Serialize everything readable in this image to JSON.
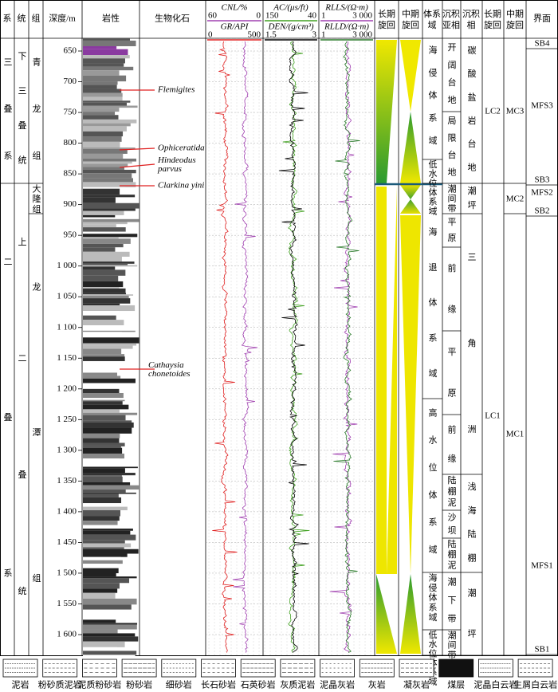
{
  "header": {
    "system": "系",
    "series": "统",
    "formation": "组",
    "depth": "深度/m",
    "lithology": "岩性",
    "fossils": "生物化石",
    "long_cycle": "长期旋回",
    "mid_cycle": "中期旋回",
    "systems_tract": "体系域",
    "subfacies": "沉积亚相",
    "facies": "沉积相",
    "long_cycle2": "长期旋回",
    "mid_cycle2": "中期旋回",
    "surface": "界面"
  },
  "logs": [
    {
      "name": "CNL/%",
      "left": 60,
      "right": 0,
      "color": "#a040b0"
    },
    {
      "name": "GR/API",
      "left": 0,
      "right": 500,
      "color": "#e02020"
    },
    {
      "name": "AC/(μs/ft)",
      "left": 150,
      "right": 40,
      "color": "#40a020"
    },
    {
      "name": "DEN/(g/cm³)",
      "left": 1.5,
      "right": 3,
      "color": "#000000"
    },
    {
      "name": "RLLS/(Ω·m)",
      "left": 1,
      "right": {
        "value": 3000,
        "label": "3 000"
      },
      "color": "#a040b0"
    },
    {
      "name": "RLLD/(Ω·m)",
      "left": 1,
      "right": {
        "value": 3000,
        "label": "3 000"
      },
      "color": "#2a7a2a"
    }
  ],
  "depth_ticks": [
    650,
    700,
    750,
    800,
    850,
    900,
    950,
    {
      "value": 1000,
      "label": "1 000"
    },
    {
      "value": 1050,
      "label": "1 050"
    },
    {
      "value": 1100,
      "label": "1 100"
    },
    {
      "value": 1150,
      "label": "1 150"
    },
    {
      "value": 1200,
      "label": "1 200"
    },
    {
      "value": 1250,
      "label": "1 250"
    },
    {
      "value": 1300,
      "label": "1 300"
    },
    {
      "value": 1350,
      "label": "1 350"
    },
    {
      "value": 1400,
      "label": "1 400"
    },
    {
      "value": 1450,
      "label": "1 450"
    },
    {
      "value": 1500,
      "label": "1 500"
    },
    {
      "value": 1550,
      "label": "1 550"
    },
    {
      "value": 1600,
      "label": "1 600"
    }
  ],
  "systems": [
    "三叠系",
    "二叠系"
  ],
  "series": [
    "下三叠统",
    "上二叠统"
  ],
  "formations": [
    "青龙组",
    "大隆组",
    "龙潭组"
  ],
  "fossils": [
    "Flemigites",
    "Ophiceratida",
    "Hindeodus parvus",
    "Clarkina yini",
    "Cathaysia chonetoides"
  ],
  "systems_tracts": [
    "海侵体系域",
    "低水位体系域",
    "海退体系域",
    "高水位体系域",
    "海侵体系域",
    "低水位体系域"
  ],
  "subfacies": [
    "开阔台地",
    "局限台地",
    "潮间带",
    "平原",
    "前缘",
    "平原",
    "前缘",
    "陆棚泥",
    "沙坝",
    "陆棚泥",
    "潮下带",
    "潮间带"
  ],
  "facies": [
    "碳酸盐岩台地",
    "潮坪",
    "三角洲",
    "浅海陆棚",
    "潮坪"
  ],
  "long_cycles": [
    "LC2",
    "LC1"
  ],
  "mid_cycles": [
    "MC3",
    "MC2",
    "MC1"
  ],
  "surfaces": [
    "SB4",
    "MFS3",
    "SB3",
    "MFS2",
    "SB2",
    "MFS1",
    "SB1"
  ],
  "legend": [
    "泥岩",
    "粉砂质泥岩",
    "泥质粉砂岩",
    "粉砂岩",
    "细砂岩",
    "长石砂岩",
    "石英砂岩",
    "灰质泥岩",
    "泥晶灰岩",
    "灰岩",
    "凝灰岩",
    "煤层",
    "泥晶白云岩",
    "生屑白云岩"
  ]
}
